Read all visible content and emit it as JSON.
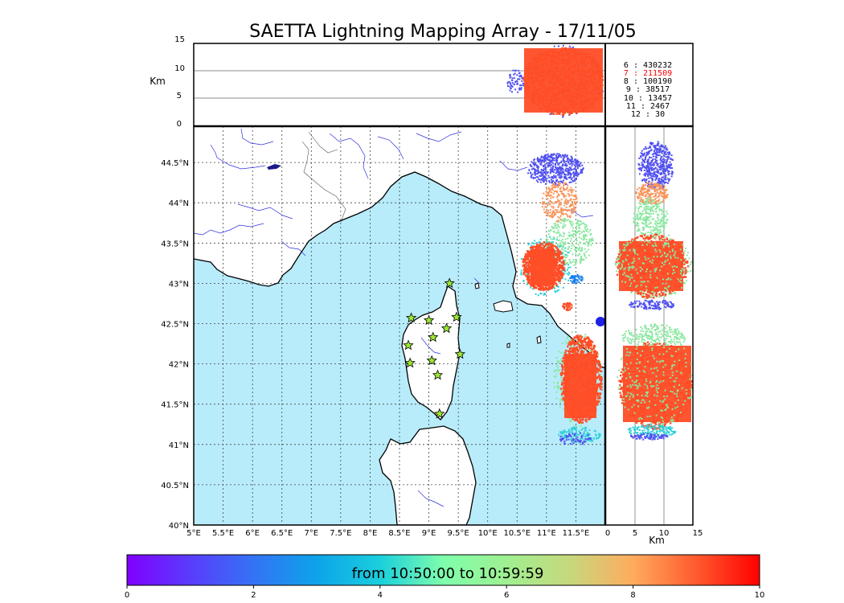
{
  "title": "SAETTA Lightning Mapping Array - 17/11/05",
  "top_panel": {
    "ylabel": "Km",
    "y_ticks": [
      "0",
      "5",
      "10",
      "15"
    ]
  },
  "side_panel": {
    "xlabel": "Km",
    "x_ticks": [
      "0",
      "5",
      "10",
      "15"
    ]
  },
  "map": {
    "lon_ticks": [
      "5°E",
      "5.5°E",
      "6°E",
      "6.5°E",
      "7°E",
      "7.5°E",
      "8°E",
      "8.5°E",
      "9°E",
      "9.5°E",
      "10°E",
      "10.5°E",
      "11°E",
      "11.5°E"
    ],
    "lat_ticks": [
      "40°N",
      "40.5°N",
      "41°N",
      "41.5°N",
      "42°N",
      "42.5°N",
      "43°N",
      "43.5°N",
      "44°N",
      "44.5°N"
    ],
    "stations": [
      {
        "lon": 8.7,
        "lat": 42.57
      },
      {
        "lon": 9.0,
        "lat": 42.54
      },
      {
        "lon": 9.47,
        "lat": 42.58
      },
      {
        "lon": 9.3,
        "lat": 42.44
      },
      {
        "lon": 9.07,
        "lat": 42.33
      },
      {
        "lon": 8.65,
        "lat": 42.23
      },
      {
        "lon": 9.05,
        "lat": 42.04
      },
      {
        "lon": 8.68,
        "lat": 42.01
      },
      {
        "lon": 9.53,
        "lat": 42.12
      },
      {
        "lon": 9.15,
        "lat": 41.86
      },
      {
        "lon": 9.18,
        "lat": 41.38
      },
      {
        "lon": 9.35,
        "lat": 43.0
      }
    ]
  },
  "legend": {
    "rows": [
      {
        "key": "6",
        "sep": ":",
        "count": "430232",
        "color": "#000000"
      },
      {
        "key": "7",
        "sep": ":",
        "count": "211509",
        "color": "#ff0000"
      },
      {
        "key": "8",
        "sep": ":",
        "count": "100190",
        "color": "#000000"
      },
      {
        "key": "9",
        "sep": ":",
        "count": "38517",
        "color": "#000000"
      },
      {
        "key": "10",
        "sep": ":",
        "count": "13457",
        "color": "#000000"
      },
      {
        "key": "11",
        "sep": ":",
        "count": "2467",
        "color": "#000000"
      },
      {
        "key": "12",
        "sep": ":",
        "count": "30",
        "color": "#000000"
      }
    ]
  },
  "colorbar": {
    "label": "from 10:50:00 to 10:59:59",
    "ticks": [
      "0",
      "2",
      "4",
      "6",
      "8",
      "10"
    ]
  },
  "colors": {
    "sea": "#b8ecfb",
    "cluster_red": "#ff4d26",
    "cluster_orange": "#f9945a",
    "cluster_blue": "#5050f0",
    "cluster_green": "#8ae8a0",
    "cluster_cyan": "#30d0d8",
    "station_fill": "#9be832"
  }
}
